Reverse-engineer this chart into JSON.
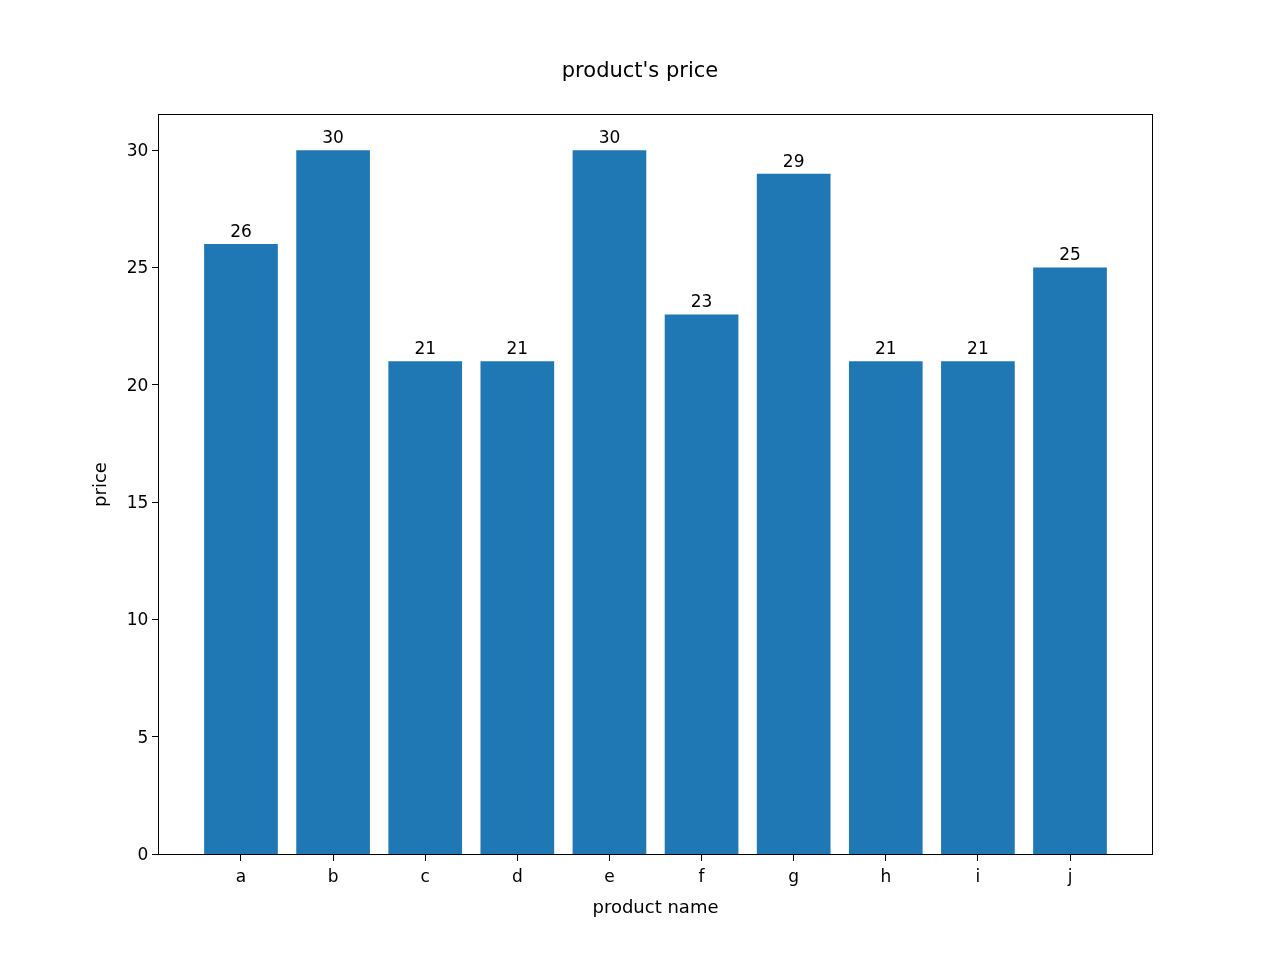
{
  "chart_data": {
    "type": "bar",
    "title": "product's price",
    "xlabel": "product name",
    "ylabel": "price",
    "categories": [
      "a",
      "b",
      "c",
      "d",
      "e",
      "f",
      "g",
      "h",
      "i",
      "j"
    ],
    "values": [
      26,
      30,
      21,
      21,
      30,
      23,
      29,
      21,
      21,
      25
    ],
    "color": "#1f77b4",
    "ylim": [
      0,
      31.5
    ],
    "yticks": [
      0,
      5,
      10,
      15,
      20,
      25,
      30
    ],
    "data_labels": true
  }
}
